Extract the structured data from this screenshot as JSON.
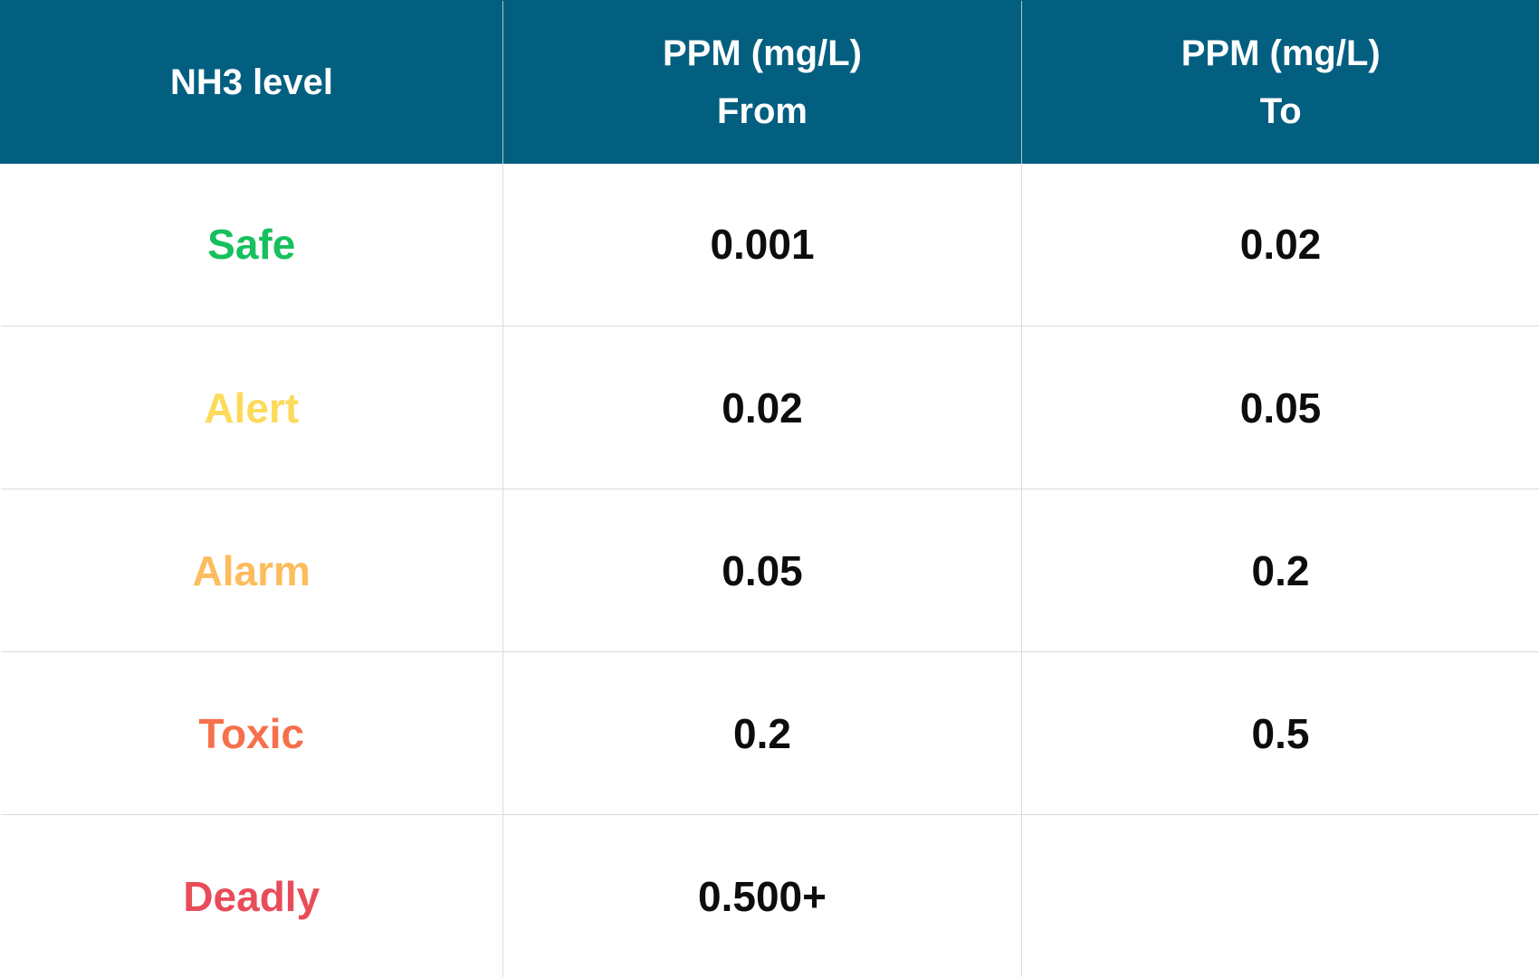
{
  "table": {
    "headers": [
      {
        "lines": [
          "NH3 level"
        ]
      },
      {
        "lines": [
          "PPM (mg/L)",
          "From"
        ]
      },
      {
        "lines": [
          "PPM (mg/L)",
          "To"
        ]
      }
    ],
    "rows": [
      {
        "level": "Safe",
        "color": "#17c05e",
        "from": "0.001",
        "to": "0.02"
      },
      {
        "level": "Alert",
        "color": "#fcdb5b",
        "from": "0.02",
        "to": "0.05"
      },
      {
        "level": "Alarm",
        "color": "#fdbc5d",
        "from": "0.05",
        "to": "0.2"
      },
      {
        "level": "Toxic",
        "color": "#f6704c",
        "from": "0.2",
        "to": "0.5"
      },
      {
        "level": "Deadly",
        "color": "#e94c59",
        "from": "0.500+",
        "to": ""
      }
    ]
  },
  "colors": {
    "header_bg": "#035f80",
    "header_text": "#ffffff",
    "value_text": "#0d0d0d",
    "grid": "#dcdcdc"
  }
}
